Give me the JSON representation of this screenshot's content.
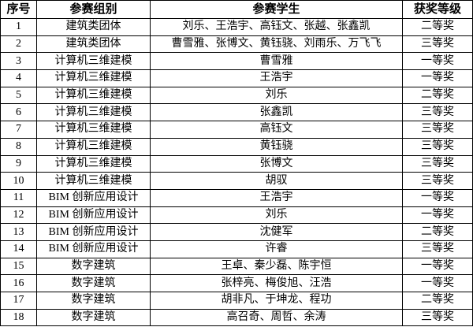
{
  "table": {
    "header": [
      "序号",
      "参赛组别",
      "参赛学生",
      "获奖等级"
    ],
    "rows": [
      [
        "1",
        "建筑类团体",
        "刘乐、王浩宇、高钰文、张越、张鑫凯",
        "二等奖"
      ],
      [
        "2",
        "建筑类团体",
        "曹雪雅、张博文、黄钰骁、刘雨乐、万飞飞",
        "三等奖"
      ],
      [
        "3",
        "计算机三维建模",
        "曹雪雅",
        "一等奖"
      ],
      [
        "4",
        "计算机三维建模",
        "王浩宇",
        "一等奖"
      ],
      [
        "5",
        "计算机三维建模",
        "刘乐",
        "二等奖"
      ],
      [
        "6",
        "计算机三维建模",
        "张鑫凯",
        "三等奖"
      ],
      [
        "7",
        "计算机三维建模",
        "高钰文",
        "三等奖"
      ],
      [
        "8",
        "计算机三维建模",
        "黄钰骁",
        "三等奖"
      ],
      [
        "9",
        "计算机三维建模",
        "张博文",
        "三等奖"
      ],
      [
        "10",
        "计算机三维建模",
        "胡驭",
        "三等奖"
      ],
      [
        "11",
        "BIM 创新应用设计",
        "王浩宇",
        "一等奖"
      ],
      [
        "12",
        "BIM 创新应用设计",
        "刘乐",
        "一等奖"
      ],
      [
        "13",
        "BIM 创新应用设计",
        "沈健军",
        "二等奖"
      ],
      [
        "14",
        "BIM 创新应用设计",
        "许睿",
        "三等奖"
      ],
      [
        "15",
        "数字建筑",
        "王卓、秦少磊、陈宇恒",
        "一等奖"
      ],
      [
        "16",
        "数字建筑",
        "张梓亮、梅俊旭、汪浩",
        "一等奖"
      ],
      [
        "17",
        "数字建筑",
        "胡非凡、于坤龙、程功",
        "二等奖"
      ],
      [
        "18",
        "数字建筑",
        "高召奇、周哲、余涛",
        "三等奖"
      ]
    ]
  }
}
